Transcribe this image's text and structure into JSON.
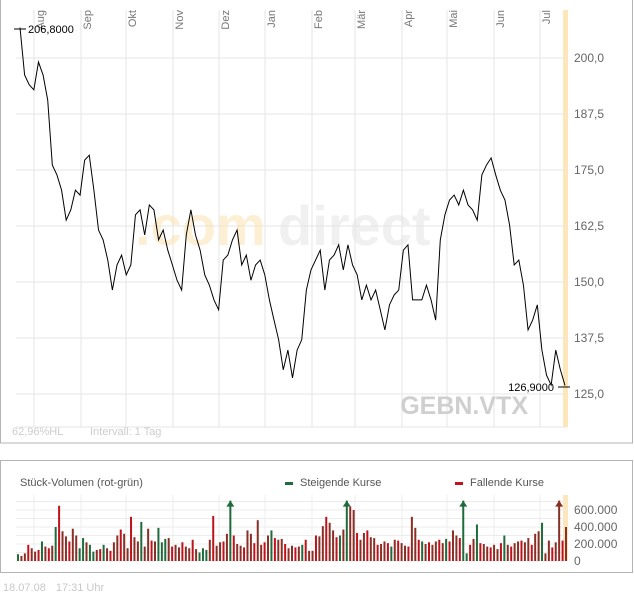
{
  "chart_data": [
    {
      "type": "line",
      "title": "GEBN.VTX",
      "watermark": "comdirect",
      "x_tick_labels": [
        "Aug",
        "Sep",
        "Okt",
        "Nov",
        "Dez",
        "Jan",
        "Feb",
        "Mär",
        "Apr",
        "Mai",
        "Jun",
        "Jul"
      ],
      "y_tick_labels": [
        "200,0",
        "187,5",
        "175,0",
        "162,5",
        "150,0",
        "137,5",
        "125,0"
      ],
      "y_ticks": [
        200,
        187.5,
        175,
        162.5,
        150,
        137.5,
        125
      ],
      "ylim": [
        117.6,
        206.8
      ],
      "grid": true,
      "high_label": "206,8000",
      "low_label": "126,9000",
      "high_value": 206.8,
      "low_value": 126.9,
      "info_left": "62,96%HL",
      "info_interval": "Intervall: 1 Tag",
      "series": [
        {
          "name": "GEBN.VTX",
          "values": [
            206.8,
            196.2,
            194.0,
            192.9,
            199.1,
            196.2,
            190.6,
            176.1,
            173.9,
            170.5,
            163.8,
            166.1,
            170.5,
            169.4,
            177.2,
            178.3,
            170.5,
            161.6,
            159.4,
            154.9,
            148.2,
            153.8,
            156.0,
            151.6,
            153.8,
            165.0,
            166.1,
            160.5,
            167.2,
            166.1,
            159.4,
            161.6,
            157.1,
            153.8,
            150.4,
            148.2,
            160.5,
            166.1,
            160.5,
            157.1,
            151.6,
            149.3,
            146.0,
            143.8,
            154.9,
            156.0,
            159.4,
            161.6,
            153.8,
            156.0,
            150.4,
            153.8,
            154.9,
            151.6,
            146.0,
            141.5,
            137.1,
            130.4,
            134.8,
            128.6,
            134.8,
            137.1,
            148.2,
            152.7,
            154.9,
            157.1,
            148.2,
            154.9,
            156.0,
            158.3,
            152.7,
            158.3,
            153.8,
            151.6,
            146.0,
            149.3,
            146.0,
            148.2,
            143.8,
            139.3,
            144.9,
            147.1,
            148.2,
            157.1,
            158.3,
            146.0,
            146.0,
            146.0,
            149.3,
            146.0,
            141.5,
            159.4,
            165.0,
            168.3,
            169.4,
            167.2,
            170.5,
            167.2,
            166.1,
            163.8,
            173.9,
            176.1,
            177.7,
            173.9,
            170.5,
            168.3,
            162.7,
            153.8,
            154.9,
            149.3,
            139.3,
            141.5,
            144.9,
            134.8,
            129.2,
            127.0,
            134.8,
            130.4,
            126.9
          ]
        }
      ]
    },
    {
      "type": "bar",
      "title": "Stück-Volumen (rot-grün)",
      "legend": [
        "Steigende Kurse",
        "Fallende Kurse"
      ],
      "legend_colors": [
        "#1f6b3c",
        "#c0121c"
      ],
      "y_tick_labels": [
        "600.000",
        "400.000",
        "200.000",
        "0"
      ],
      "y_ticks": [
        600000,
        400000,
        200000,
        0
      ],
      "ylim": [
        0,
        700000
      ],
      "note": "positive = steigend, negative = fallend (thousands)",
      "values": [
        80,
        -60,
        -90,
        -190,
        -150,
        -110,
        -130,
        230,
        -170,
        -150,
        -180,
        400,
        -650,
        -350,
        -290,
        -230,
        -380,
        -300,
        150,
        270,
        -220,
        190,
        110,
        -130,
        -140,
        190,
        -150,
        -120,
        -220,
        -300,
        -370,
        -320,
        -150,
        -520,
        -280,
        -230,
        460,
        -170,
        -380,
        -240,
        -230,
        390,
        220,
        260,
        -270,
        -170,
        -190,
        -160,
        -220,
        -170,
        -150,
        -250,
        -140,
        100,
        150,
        130,
        -250,
        -530,
        -180,
        -220,
        -230,
        -320,
        900,
        -300,
        -200,
        -180,
        -160,
        -360,
        -320,
        -210,
        -480,
        -190,
        -220,
        -300,
        360,
        -270,
        -250,
        -260,
        -200,
        -150,
        -180,
        -160,
        -170,
        190,
        -250,
        -120,
        -120,
        -300,
        -290,
        -410,
        -520,
        -450,
        -360,
        -280,
        300,
        -370,
        900,
        -640,
        -600,
        -330,
        -250,
        -330,
        -360,
        -280,
        -270,
        -190,
        -200,
        -230,
        -210,
        170,
        -250,
        -240,
        -210,
        -180,
        -170,
        -520,
        -390,
        -250,
        230,
        -200,
        -220,
        -190,
        -230,
        -250,
        -210,
        260,
        -230,
        -360,
        -300,
        -270,
        900,
        90,
        -190,
        -260,
        430,
        -210,
        -200,
        -170,
        -160,
        -190,
        -140,
        -210,
        300,
        -190,
        -170,
        -210,
        -230,
        -240,
        -220,
        -270,
        -190,
        -320,
        -350,
        450,
        -90,
        -240,
        -160,
        -220,
        -900,
        -240,
        -400
      ]
    }
  ],
  "footer": {
    "date": "18.07.08",
    "time": "17:31 Uhr"
  }
}
